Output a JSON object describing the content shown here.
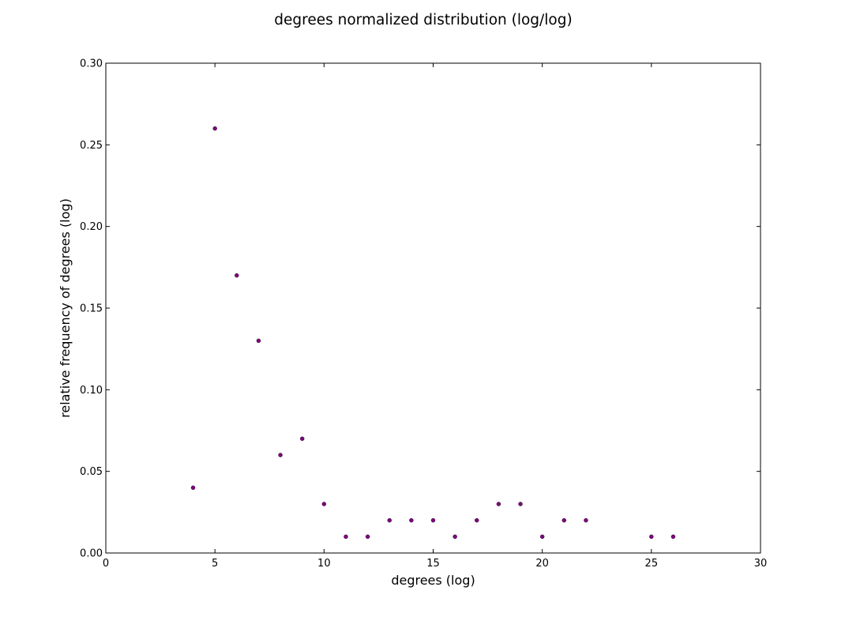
{
  "chart_data": {
    "type": "scatter",
    "title": "degrees normalized distribution (log/log)",
    "xlabel": "degrees (log)",
    "ylabel": "relative frequency of degrees (log)",
    "xlim": [
      0,
      30
    ],
    "ylim": [
      0.0,
      0.3
    ],
    "x_ticks": [
      0,
      5,
      10,
      15,
      20,
      25,
      30
    ],
    "x_tick_labels": [
      "0",
      "5",
      "10",
      "15",
      "20",
      "25",
      "30"
    ],
    "y_ticks": [
      0.0,
      0.05,
      0.1,
      0.15,
      0.2,
      0.25,
      0.3
    ],
    "y_tick_labels": [
      "0.00",
      "0.05",
      "0.10",
      "0.15",
      "0.20",
      "0.25",
      "0.30"
    ],
    "grid": false,
    "marker_color": "#800080",
    "series": [
      {
        "x": [
          4,
          5,
          6,
          7,
          8,
          9,
          10,
          11,
          12,
          13,
          14,
          15,
          16,
          17,
          18,
          19,
          20,
          21,
          22,
          25,
          26
        ],
        "y": [
          0.04,
          0.26,
          0.17,
          0.13,
          0.06,
          0.07,
          0.03,
          0.01,
          0.01,
          0.02,
          0.02,
          0.02,
          0.01,
          0.02,
          0.03,
          0.03,
          0.01,
          0.02,
          0.02,
          0.01,
          0.01
        ]
      }
    ]
  }
}
